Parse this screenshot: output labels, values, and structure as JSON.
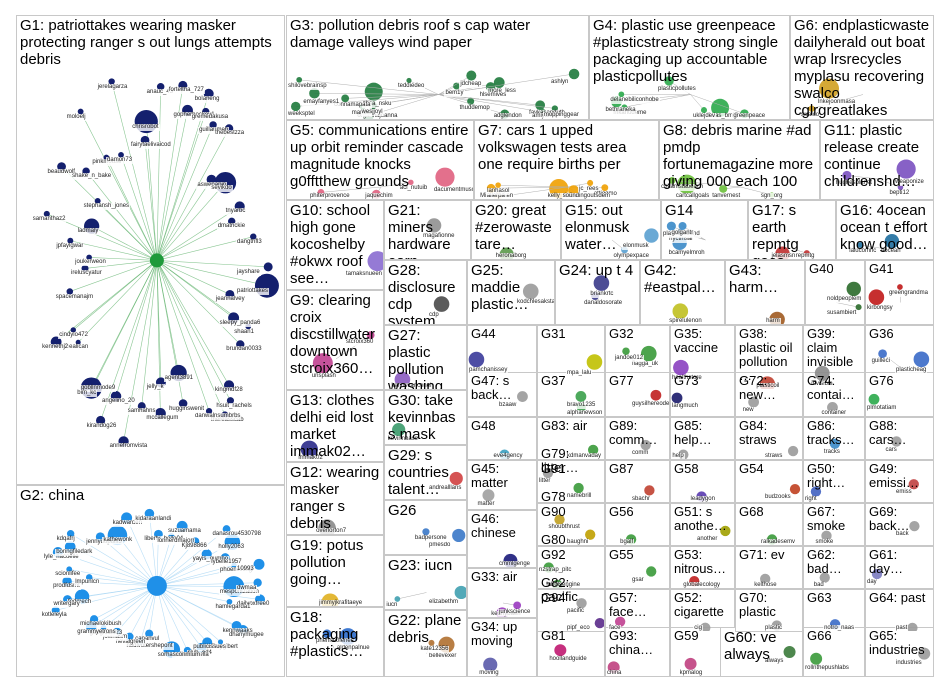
{
  "groups": [
    {
      "id": "G1",
      "label": "G1: patriottakes wearing masker protecting ranger s out lungs attempts debris",
      "color": "#14206e",
      "names": [
        "patriottakes",
        "jeannalvey",
        "sleepy_panda6",
        "shaan1",
        "brundan0033",
        "kingmdf28",
        "hsuit_rachels",
        "thereasscab",
        "danwalnsumbrbs",
        "agent3891",
        "hugginswenit",
        "jelly_k",
        "mccallegum",
        "samhahns",
        "annefromvista",
        "angelino_20",
        "kirandog26",
        "gobllnmode9",
        "bim_kc",
        "thealican",
        "kennethj2",
        "cindylo472",
        "spacemanajm",
        "ireluscyatur",
        "joukerweon",
        "jpfaylgwar",
        "samanthaz2",
        "ladmaly",
        "beaudwolf",
        "stephansh_jones",
        "shake_n_bake",
        "moloelj",
        "pinkmouse",
        "damon73",
        "jerelagarza",
        "fairytaelivaicod",
        "chrisrobot",
        "anauc_43",
        "forteltha_727",
        "gopherhockey1",
        "bolaneng",
        "gremedakusa",
        "guillaumeb",
        "thebestzza",
        "aswepapin",
        "sevikdo",
        "tnyarbc",
        "dmatrickie",
        "dangthfl3",
        "jayshare"
      ]
    },
    {
      "id": "G2",
      "label": "G2: china",
      "color": "#1f90e8",
      "names": [
        "mespontzation",
        "dailyoxfree0",
        "hamlegarda1",
        "kennwaaks",
        "dhanymugee",
        "jefferyglbert",
        "publicissues",
        "club_ed4",
        "belladonnella",
        "sorhasconmlum",
        "capanvul",
        "nodlvotershepont",
        "nevalgreen",
        "joelnasm",
        "gangxiam23",
        "grammyetrons",
        "michaelokibush",
        "kotleleyla",
        "fedmech",
        "writergary",
        "prodfdsmt",
        "lmpunlcn",
        "scionlifee",
        "lyle_nacoelle",
        "boringfiledark",
        "kdqafrj",
        "jennydupuis5",
        "kathewonk",
        "kadwarden",
        "kidaraanlandi",
        "liberty_belle04",
        "lonnerdmajorr",
        "suzuamama",
        "Kj898866",
        "danasrou4530798",
        "yayis_gumbo",
        "holly2063",
        "lybelle1957",
        "phoenixkingl",
        "10993",
        "dwmaa"
      ]
    },
    {
      "id": "G3",
      "label": "G3: pollution debris roof s cap water damage valleys wind paper",
      "color": "#1e7a3c",
      "names": [
        "zbsa_nsku",
        "more_less",
        "organnajoanna",
        "favkasanduth",
        "teddiedeo",
        "manuel",
        "hlsemives",
        "amiyama",
        "thuddemop",
        "bem1y",
        "connamapata",
        "moppinggear",
        "adglendon",
        "shilovebrainsp",
        "wesjjoyl",
        "emayfanyes1",
        "jdcheap",
        "weeksptel",
        "ashlyn"
      ]
    },
    {
      "id": "G4",
      "label": "G4: plastic use greenpeace #plasticstreaty strong single packaging up accountable plasticpollutes",
      "color": "#2aa84a",
      "names": [
        "lalas_bmtfl",
        "mkahudeme",
        "bethraneka",
        "greenpeace",
        "plasticpollutes",
        "delanebiliconhobe",
        "uklejdev"
      ]
    },
    {
      "id": "G5",
      "label": "G5: communications entire up orbit reminder cascade magnitude knocks g0fftthew grounds",
      "color": "#e06080",
      "names": [
        "dacumentmuscians",
        "aci_nutuib",
        "phiterprovence",
        "jaquechim"
      ]
    },
    {
      "id": "G6",
      "label": "G6: endplasticwaste dailyherald out boat wrap lrsrecycles myplasu recovering swalco cglrgreatlakes",
      "color": "#d0a020",
      "names": [
        "lnkejoonmasa",
        "swalco"
      ]
    },
    {
      "id": "G7",
      "label": "G7: cars 1 upped volkswagen tests area one require births per",
      "color": "#f0a000",
      "names": [
        "kelly_dalbal",
        "jc_rees",
        "Mimichicken",
        "allerpa",
        "attiggmo",
        "lanhasol",
        "soundingoutsdem"
      ]
    },
    {
      "id": "G8",
      "label": "G8: debris marine #ad pmdp fortunemagazine more giving 000 each 100",
      "color": "#6abf3a",
      "names": [
        "cartcallgoals",
        "tanvernest",
        "sgn_org",
        "chkamstaoeach"
      ]
    },
    {
      "id": "G9",
      "label": "G9: clearing croix discstillwater downtown stcroix360…",
      "color": "#c04090",
      "names": [
        "unsplash",
        "stcroix360"
      ]
    },
    {
      "id": "G10",
      "label": "G10: school high gone kocoshelby #okwx roof see…",
      "color": "#8a6bd0",
      "names": [
        "tamaksnueen"
      ]
    },
    {
      "id": "G11",
      "label": "G11: plastic release create continue childrenshd…",
      "color": "#7a50c0",
      "names": [
        "weaponize",
        "bepti12",
        "hughesplanet"
      ]
    },
    {
      "id": "G12",
      "label": "G12: wearing masker ranger s debris metal…",
      "color": "#8a8a8a",
      "names": [
        "overlorton7"
      ]
    },
    {
      "id": "G13",
      "label": "G13: clothes delhi eid lost market immak02…",
      "color": "#2a2a8a",
      "names": [
        "immak02"
      ]
    },
    {
      "id": "G14",
      "label": "G14",
      "color": "#3a8ac8",
      "names": [
        "bcamyelmroh",
        "nyctinsal",
        "plastickebond",
        "golgantr"
      ]
    },
    {
      "id": "G15",
      "label": "G15: out elonmusk water…",
      "color": "#5aa0d0",
      "names": [
        "elonmusk",
        "olympexpace"
      ]
    },
    {
      "id": "G16",
      "label": "G16: 4ocean ocean t effort know good…",
      "color": "#1e6e9e",
      "names": [
        "4ocean",
        "lalucomhc"
      ]
    },
    {
      "id": "G17",
      "label": "G17: s earth repmtg goes rageinggra…",
      "color": "#c03030",
      "names": [
        "jelasmsn",
        "repmtg"
      ]
    },
    {
      "id": "G18",
      "label": "G18: packaging #plastics…",
      "color": "#2a6acc",
      "names": [
        "aldenpalnue",
        "phenrie0lenes"
      ]
    },
    {
      "id": "G19",
      "label": "G19: potus pollution going…",
      "color": "#e0b020",
      "names": [
        "jimmyjkrafitaeye"
      ]
    },
    {
      "id": "G20",
      "label": "G20: great #zerowaste tare…",
      "color": "#5a9a4a",
      "names": [
        "heronaborg"
      ]
    },
    {
      "id": "G21",
      "label": "G21: miners hardware earn",
      "color": "#909090",
      "names": [
        "magafionne"
      ]
    },
    {
      "id": "G22",
      "label": "G22: plane debris",
      "color": "#b07030",
      "names": [
        "bellevexer",
        "kate12356"
      ]
    },
    {
      "id": "G23",
      "label": "G23: iucn",
      "color": "#40a0b0",
      "names": [
        "elizabethm",
        "iucn"
      ]
    },
    {
      "id": "G24",
      "label": "G24: up t 4",
      "color": "#3a3a8a",
      "names": [
        "briankrtc",
        "danaldosorate"
      ]
    },
    {
      "id": "G25",
      "label": "G25: maddie plastic…",
      "color": "#9a9a9a",
      "names": [
        "kodchlesakstats"
      ]
    },
    {
      "id": "G26",
      "label": "G26",
      "color": "#3a78c8",
      "names": [
        "pmesdo",
        "badpersone"
      ]
    },
    {
      "id": "G27",
      "label": "G27: plastic pollution washing…",
      "color": "#8a5ac0",
      "names": [
        "kenosvancenel"
      ]
    },
    {
      "id": "G28",
      "label": "G28: disclosure cdp system",
      "color": "#4a4a4a",
      "names": [
        "cdp"
      ]
    },
    {
      "id": "G29",
      "label": "G29: s countries talent…",
      "color": "#d04040",
      "names": [
        "andrealllans"
      ]
    },
    {
      "id": "G30",
      "label": "G30: take kevinnbass mask",
      "color": "#3a9a6a",
      "names": [
        "kevinnbass"
      ]
    },
    {
      "id": "G31",
      "label": "G31",
      "color": "#c0c000",
      "names": [
        "mpa_lalu"
      ]
    },
    {
      "id": "G32",
      "label": "G32",
      "color": "#3a9a3a",
      "names": [
        "flagga_uk",
        "jandoe012"
      ]
    },
    {
      "id": "G33",
      "label": "G33: air",
      "color": "#9a3ac0",
      "names": [
        "kennybaen",
        "junkscience"
      ]
    },
    {
      "id": "G34",
      "label": "G34: up moving",
      "color": "#5a5aaa",
      "names": [
        "moving"
      ]
    },
    {
      "id": "G35",
      "label": "G35: vaccine",
      "color": "#8a40c0",
      "names": [
        "healthstore"
      ]
    },
    {
      "id": "G36",
      "label": "G36",
      "color": "#3a6ac8",
      "names": [
        "plasticheag",
        "guilleci"
      ]
    },
    {
      "id": "G37",
      "label": "G37",
      "color": "#3aa04a",
      "names": [
        "bravo1235",
        "alphanewson"
      ]
    },
    {
      "id": "G38",
      "label": "G38: plastic oil pollution…",
      "color": "#c04030",
      "names": [
        "plasticoil"
      ]
    },
    {
      "id": "G39",
      "label": "G39: claim invisible",
      "color": "#8a8a8a",
      "names": [
        "invisible"
      ]
    },
    {
      "id": "G40",
      "label": "G40",
      "color": "#2a6a2a",
      "names": [
        "noldpeoplem",
        "susambiert"
      ]
    },
    {
      "id": "G41",
      "label": "G41",
      "color": "#c01818",
      "names": [
        "kirbongsy",
        "greengrandma"
      ]
    },
    {
      "id": "G42",
      "label": "G42: #eastpal…",
      "color": "#c0c020",
      "names": [
        "spirelulenon"
      ]
    },
    {
      "id": "G43",
      "label": "G43: harm…",
      "color": "#a05a20",
      "names": [
        "harm"
      ]
    },
    {
      "id": "G44",
      "label": "G44",
      "color": "#3a3a9a",
      "names": [
        "pamchanissey"
      ]
    },
    {
      "id": "G45",
      "label": "G45: matter",
      "color": "#a0a0a0",
      "names": [
        "matter"
      ]
    },
    {
      "id": "G46",
      "label": "G46: chinese",
      "color": "#1a1a7a",
      "names": [
        "cmmlgenge"
      ]
    },
    {
      "id": "G47",
      "label": "G47: s back…",
      "color": "#9a9a9a",
      "names": [
        "bzaaw"
      ]
    },
    {
      "id": "G48",
      "label": "G48",
      "color": "#3aa0c0",
      "names": [
        "eve4gency"
      ]
    },
    {
      "id": "G49",
      "label": "G49: emissi…",
      "color": "#c04040",
      "names": [
        "emiss"
      ]
    },
    {
      "id": "G50",
      "label": "G50: right…",
      "color": "#4060c0",
      "names": [
        "right"
      ]
    },
    {
      "id": "G51",
      "label": "G51: s anothe…",
      "color": "#a0a000",
      "names": [
        "another"
      ]
    },
    {
      "id": "G52",
      "label": "G52: cigarette",
      "color": "#9a9a9a",
      "names": [
        "cig"
      ]
    },
    {
      "id": "G53",
      "label": "G53: nitrous…",
      "color": "#c02020",
      "names": [
        "globalecology"
      ]
    },
    {
      "id": "G54",
      "label": "G54",
      "color": "#c04020",
      "names": [
        "budzooks"
      ]
    },
    {
      "id": "G55",
      "label": "G55",
      "color": "#3a9a3a",
      "names": [
        "gsar"
      ]
    },
    {
      "id": "G56",
      "label": "G56",
      "color": "#3a9a3a",
      "names": [
        "bgalf"
      ]
    },
    {
      "id": "G57",
      "label": "G57: face…",
      "color": "#c04090",
      "names": [
        "face"
      ]
    },
    {
      "id": "G58",
      "label": "G58",
      "color": "#5a3ab0",
      "names": [
        "leadygon"
      ]
    },
    {
      "id": "G59",
      "label": "G59",
      "color": "#c04080",
      "names": [
        "kpmalog"
      ]
    },
    {
      "id": "G60",
      "label": "G60: ve always",
      "color": "#3a7a3a",
      "names": [
        "always"
      ]
    },
    {
      "id": "G61",
      "label": "G61: day…",
      "color": "#7a7ac0",
      "names": [
        "day"
      ]
    },
    {
      "id": "G62",
      "label": "G62: bad…",
      "color": "#9a9a9a",
      "names": [
        "bad"
      ]
    },
    {
      "id": "G63",
      "label": "G63",
      "color": "#3a6ac8",
      "names": [
        "notro_naas"
      ]
    },
    {
      "id": "G64",
      "label": "G64: past",
      "color": "#9a9a9a",
      "names": [
        "past"
      ]
    },
    {
      "id": "G65",
      "label": "G65: industries",
      "color": "#9a9a9a",
      "names": [
        "industries"
      ]
    },
    {
      "id": "G66",
      "label": "G66",
      "color": "#3a9a3a",
      "names": [
        "rollnthepushlabs"
      ]
    },
    {
      "id": "G67",
      "label": "G67: smoke",
      "color": "#9a9a9a",
      "names": [
        "smoke"
      ]
    },
    {
      "id": "G68",
      "label": "G68",
      "color": "#3a9a3a",
      "names": [
        "ralkadesemv"
      ]
    },
    {
      "id": "G69",
      "label": "G69: back…",
      "color": "#9a9a9a",
      "names": [
        "back"
      ]
    },
    {
      "id": "G70",
      "label": "G70: plastic",
      "color": "#9a9a9a",
      "names": [
        "plastic"
      ]
    },
    {
      "id": "G71",
      "label": "G71: ev",
      "color": "#9a9a9a",
      "names": [
        "kelthose"
      ]
    },
    {
      "id": "G72",
      "label": "G72: new…",
      "color": "#9a9a9a",
      "names": [
        "new"
      ]
    },
    {
      "id": "G73",
      "label": "G73",
      "color": "#1a1a6a",
      "names": [
        "langmuch"
      ]
    },
    {
      "id": "G74",
      "label": "G74: contai…",
      "color": "#9a9a9a",
      "names": [
        "container"
      ]
    },
    {
      "id": "G75",
      "label": "G75: car now",
      "color": "#9a9a9a",
      "names": [
        "carnow"
      ]
    },
    {
      "id": "G76",
      "label": "G76",
      "color": "#2aa84a",
      "names": [
        "plmotatiam"
      ]
    },
    {
      "id": "G77",
      "label": "G77",
      "color": "#c02020",
      "names": [
        "guysilhereode"
      ]
    },
    {
      "id": "G78",
      "label": "G78",
      "color": "#c0a020",
      "names": [
        "shoubthrust"
      ]
    },
    {
      "id": "G79",
      "label": "G79: litter…",
      "color": "#9a9a9a",
      "names": [
        "litter"
      ]
    },
    {
      "id": "G80",
      "label": "G80",
      "color": "#3a9a3a",
      "names": [
        "nzstrap_pitc"
      ]
    },
    {
      "id": "G81",
      "label": "G81",
      "color": "#c01870",
      "names": [
        "hoollandguide"
      ]
    },
    {
      "id": "G82",
      "label": "G82: pacific",
      "color": "#9a9a9a",
      "names": [
        "pacific"
      ]
    },
    {
      "id": "G83",
      "label": "G83: air",
      "color": "#3a9a3a",
      "names": [
        "kdmanvaday"
      ]
    },
    {
      "id": "G84",
      "label": "G84: straws",
      "color": "#9a9a9a",
      "names": [
        "straws"
      ]
    },
    {
      "id": "G85",
      "label": "G85: help…",
      "color": "#9a9a9a",
      "names": [
        "help"
      ]
    },
    {
      "id": "G86",
      "label": "G86: tracks…",
      "color": "#3a8ac8",
      "names": [
        "tracks"
      ]
    },
    {
      "id": "G87",
      "label": "G87",
      "color": "#c04030",
      "names": [
        "sbachr"
      ]
    },
    {
      "id": "G88",
      "label": "G88: cars…",
      "color": "#9a9a9a",
      "names": [
        "cars"
      ]
    },
    {
      "id": "G89",
      "label": "G89: comm…",
      "color": "#9a9a9a",
      "names": [
        "comm"
      ]
    },
    {
      "id": "G90",
      "label": "G90",
      "color": "#c0a000",
      "names": [
        "baughni"
      ]
    },
    {
      "id": "G91",
      "label": "G91",
      "color": "#3a9a3a",
      "names": [
        "namebrill"
      ]
    },
    {
      "id": "G92",
      "label": "G92",
      "color": "#3a9a3a",
      "names": [
        "labulsengine"
      ]
    },
    {
      "id": "G93",
      "label": "G93: china…",
      "color": "#c04080",
      "names": [
        "china"
      ]
    },
    {
      "id": "G94",
      "label": "G94",
      "color": "#5a2a8a",
      "names": [
        "pipf_eco"
      ]
    }
  ]
}
